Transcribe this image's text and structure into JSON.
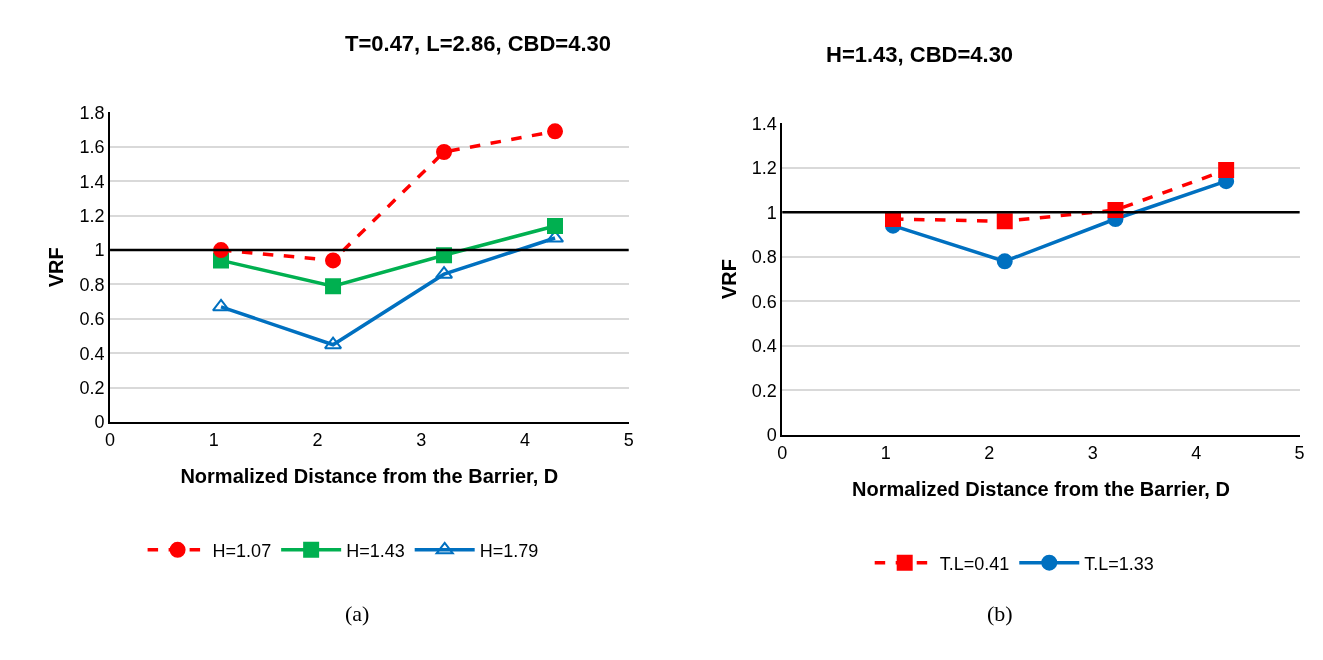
{
  "chart_data": [
    {
      "type": "line",
      "title": "T=0.47, L=2.86, CBD=4.30",
      "xlabel": "Normalized Distance from the Barrier, D",
      "ylabel": "VRF",
      "x": [
        1.07,
        2.15,
        3.22,
        4.29
      ],
      "xlim": [
        0,
        5
      ],
      "xticks": [
        0,
        1,
        2,
        3,
        4,
        5
      ],
      "ylim": [
        0,
        1.8
      ],
      "yticks": [
        0,
        0.2,
        0.4,
        0.6,
        0.8,
        1,
        1.2,
        1.4,
        1.6,
        1.8
      ],
      "grid": "y",
      "legend": "bottom",
      "ref_lines": [
        {
          "axis": "y",
          "value": 1,
          "color": "#000000"
        }
      ],
      "annotations": [
        "(a)"
      ],
      "series": [
        {
          "name": "H=1.07",
          "color": "#ff0000",
          "marker": "circle",
          "line_style": "dashed",
          "values": [
            1.0,
            0.94,
            1.57,
            1.69
          ]
        },
        {
          "name": "H=1.43",
          "color": "#00b050",
          "marker": "square",
          "line_style": "solid",
          "values": [
            0.94,
            0.79,
            0.97,
            1.14
          ]
        },
        {
          "name": "H=1.79",
          "color": "#0070c0",
          "marker": "triangle",
          "line_style": "solid",
          "values": [
            0.67,
            0.45,
            0.86,
            1.07
          ]
        }
      ]
    },
    {
      "type": "line",
      "title": "H=1.43, CBD=4.30",
      "xlabel": "Normalized Distance from the Barrier, D",
      "ylabel": "VRF",
      "x": [
        1.07,
        2.15,
        3.22,
        4.29
      ],
      "xlim": [
        0,
        5
      ],
      "xticks": [
        0,
        1,
        2,
        3,
        4,
        5
      ],
      "ylim": [
        0,
        1.4
      ],
      "yticks": [
        0,
        0.2,
        0.4,
        0.6,
        0.8,
        1,
        1.2,
        1.4
      ],
      "grid": "y",
      "legend": "bottom",
      "ref_lines": [
        {
          "axis": "y",
          "value": 1,
          "color": "#000000"
        }
      ],
      "annotations": [
        "(b)"
      ],
      "series": [
        {
          "name": "T.L=0.41",
          "color": "#ff0000",
          "marker": "square",
          "line_style": "dashed",
          "values": [
            0.97,
            0.96,
            1.01,
            1.19
          ]
        },
        {
          "name": "T.L=1.33",
          "color": "#0070c0",
          "marker": "circle",
          "line_style": "solid",
          "values": [
            0.94,
            0.78,
            0.97,
            1.14
          ]
        }
      ]
    }
  ]
}
